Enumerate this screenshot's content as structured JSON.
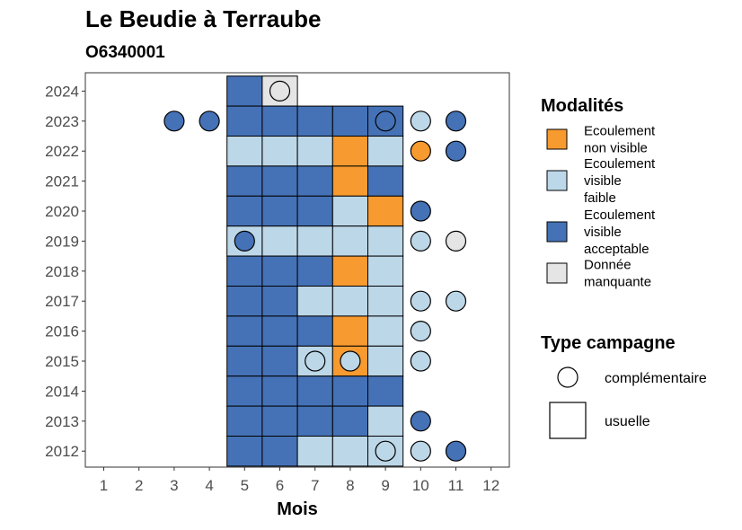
{
  "chart_data": {
    "type": "heatmap",
    "title": "Le Beudie à Terraube",
    "subtitle": "O6340001",
    "xlabel": "Mois",
    "ylabel": "",
    "x_ticks": [
      "1",
      "2",
      "3",
      "4",
      "5",
      "6",
      "7",
      "8",
      "9",
      "10",
      "11",
      "12"
    ],
    "y_ticks": [
      "2012",
      "2013",
      "2014",
      "2015",
      "2016",
      "2017",
      "2018",
      "2019",
      "2020",
      "2021",
      "2022",
      "2023",
      "2024"
    ],
    "x_range": [
      1,
      12
    ],
    "y_range": [
      2012,
      2024
    ],
    "colors": {
      "non_visible": "#f79a2f",
      "faible": "#bcd7e8",
      "acceptable": "#4572b6",
      "manquante": "#e5e5e5"
    },
    "legend_modalites": {
      "title": "Modalités",
      "items": [
        {
          "key": "non_visible",
          "label_lines": [
            "Ecoulement",
            "non visible"
          ]
        },
        {
          "key": "faible",
          "label_lines": [
            "Ecoulement",
            "visible",
            "faible"
          ]
        },
        {
          "key": "acceptable",
          "label_lines": [
            "Ecoulement",
            "visible",
            "acceptable"
          ]
        },
        {
          "key": "manquante",
          "label_lines": [
            "Donnée",
            "manquante"
          ]
        }
      ]
    },
    "legend_type": {
      "title": "Type campagne",
      "items": [
        {
          "shape": "circle",
          "label": "complémentaire"
        },
        {
          "shape": "square",
          "label": "usuelle"
        }
      ]
    },
    "usuelle": [
      {
        "year": 2024,
        "month": 5,
        "value": "acceptable"
      },
      {
        "year": 2024,
        "month": 6,
        "value": "manquante"
      },
      {
        "year": 2023,
        "month": 5,
        "value": "acceptable"
      },
      {
        "year": 2023,
        "month": 6,
        "value": "acceptable"
      },
      {
        "year": 2023,
        "month": 7,
        "value": "acceptable"
      },
      {
        "year": 2023,
        "month": 8,
        "value": "acceptable"
      },
      {
        "year": 2023,
        "month": 9,
        "value": "acceptable"
      },
      {
        "year": 2022,
        "month": 5,
        "value": "faible"
      },
      {
        "year": 2022,
        "month": 6,
        "value": "faible"
      },
      {
        "year": 2022,
        "month": 7,
        "value": "faible"
      },
      {
        "year": 2022,
        "month": 8,
        "value": "non_visible"
      },
      {
        "year": 2022,
        "month": 9,
        "value": "faible"
      },
      {
        "year": 2021,
        "month": 5,
        "value": "acceptable"
      },
      {
        "year": 2021,
        "month": 6,
        "value": "acceptable"
      },
      {
        "year": 2021,
        "month": 7,
        "value": "acceptable"
      },
      {
        "year": 2021,
        "month": 8,
        "value": "non_visible"
      },
      {
        "year": 2021,
        "month": 9,
        "value": "acceptable"
      },
      {
        "year": 2020,
        "month": 5,
        "value": "acceptable"
      },
      {
        "year": 2020,
        "month": 6,
        "value": "acceptable"
      },
      {
        "year": 2020,
        "month": 7,
        "value": "acceptable"
      },
      {
        "year": 2020,
        "month": 8,
        "value": "faible"
      },
      {
        "year": 2020,
        "month": 9,
        "value": "non_visible"
      },
      {
        "year": 2019,
        "month": 5,
        "value": "faible"
      },
      {
        "year": 2019,
        "month": 6,
        "value": "faible"
      },
      {
        "year": 2019,
        "month": 7,
        "value": "faible"
      },
      {
        "year": 2019,
        "month": 8,
        "value": "faible"
      },
      {
        "year": 2019,
        "month": 9,
        "value": "faible"
      },
      {
        "year": 2018,
        "month": 5,
        "value": "acceptable"
      },
      {
        "year": 2018,
        "month": 6,
        "value": "acceptable"
      },
      {
        "year": 2018,
        "month": 7,
        "value": "acceptable"
      },
      {
        "year": 2018,
        "month": 8,
        "value": "non_visible"
      },
      {
        "year": 2018,
        "month": 9,
        "value": "faible"
      },
      {
        "year": 2017,
        "month": 5,
        "value": "acceptable"
      },
      {
        "year": 2017,
        "month": 6,
        "value": "acceptable"
      },
      {
        "year": 2017,
        "month": 7,
        "value": "faible"
      },
      {
        "year": 2017,
        "month": 8,
        "value": "faible"
      },
      {
        "year": 2017,
        "month": 9,
        "value": "faible"
      },
      {
        "year": 2016,
        "month": 5,
        "value": "acceptable"
      },
      {
        "year": 2016,
        "month": 6,
        "value": "acceptable"
      },
      {
        "year": 2016,
        "month": 7,
        "value": "acceptable"
      },
      {
        "year": 2016,
        "month": 8,
        "value": "non_visible"
      },
      {
        "year": 2016,
        "month": 9,
        "value": "faible"
      },
      {
        "year": 2015,
        "month": 5,
        "value": "acceptable"
      },
      {
        "year": 2015,
        "month": 6,
        "value": "acceptable"
      },
      {
        "year": 2015,
        "month": 7,
        "value": "faible"
      },
      {
        "year": 2015,
        "month": 8,
        "value": "non_visible"
      },
      {
        "year": 2015,
        "month": 9,
        "value": "faible"
      },
      {
        "year": 2014,
        "month": 5,
        "value": "acceptable"
      },
      {
        "year": 2014,
        "month": 6,
        "value": "acceptable"
      },
      {
        "year": 2014,
        "month": 7,
        "value": "acceptable"
      },
      {
        "year": 2014,
        "month": 8,
        "value": "acceptable"
      },
      {
        "year": 2014,
        "month": 9,
        "value": "acceptable"
      },
      {
        "year": 2013,
        "month": 5,
        "value": "acceptable"
      },
      {
        "year": 2013,
        "month": 6,
        "value": "acceptable"
      },
      {
        "year": 2013,
        "month": 7,
        "value": "acceptable"
      },
      {
        "year": 2013,
        "month": 8,
        "value": "acceptable"
      },
      {
        "year": 2013,
        "month": 9,
        "value": "faible"
      },
      {
        "year": 2012,
        "month": 5,
        "value": "acceptable"
      },
      {
        "year": 2012,
        "month": 6,
        "value": "acceptable"
      },
      {
        "year": 2012,
        "month": 7,
        "value": "faible"
      },
      {
        "year": 2012,
        "month": 8,
        "value": "faible"
      },
      {
        "year": 2012,
        "month": 9,
        "value": "faible"
      }
    ],
    "complementaire": [
      {
        "year": 2024,
        "month": 6,
        "value": "manquante"
      },
      {
        "year": 2023,
        "month": 3,
        "value": "acceptable"
      },
      {
        "year": 2023,
        "month": 4,
        "value": "acceptable"
      },
      {
        "year": 2023,
        "month": 9,
        "value": "acceptable"
      },
      {
        "year": 2023,
        "month": 10,
        "value": "faible"
      },
      {
        "year": 2023,
        "month": 11,
        "value": "acceptable"
      },
      {
        "year": 2022,
        "month": 10,
        "value": "non_visible"
      },
      {
        "year": 2022,
        "month": 11,
        "value": "acceptable"
      },
      {
        "year": 2020,
        "month": 10,
        "value": "acceptable"
      },
      {
        "year": 2019,
        "month": 5,
        "value": "acceptable"
      },
      {
        "year": 2019,
        "month": 10,
        "value": "faible"
      },
      {
        "year": 2019,
        "month": 11,
        "value": "manquante"
      },
      {
        "year": 2017,
        "month": 10,
        "value": "faible"
      },
      {
        "year": 2017,
        "month": 11,
        "value": "faible"
      },
      {
        "year": 2016,
        "month": 10,
        "value": "faible"
      },
      {
        "year": 2015,
        "month": 7,
        "value": "faible"
      },
      {
        "year": 2015,
        "month": 8,
        "value": "faible"
      },
      {
        "year": 2015,
        "month": 10,
        "value": "faible"
      },
      {
        "year": 2013,
        "month": 10,
        "value": "acceptable"
      },
      {
        "year": 2012,
        "month": 9,
        "value": "faible"
      },
      {
        "year": 2012,
        "month": 10,
        "value": "faible"
      },
      {
        "year": 2012,
        "month": 11,
        "value": "acceptable"
      }
    ]
  }
}
